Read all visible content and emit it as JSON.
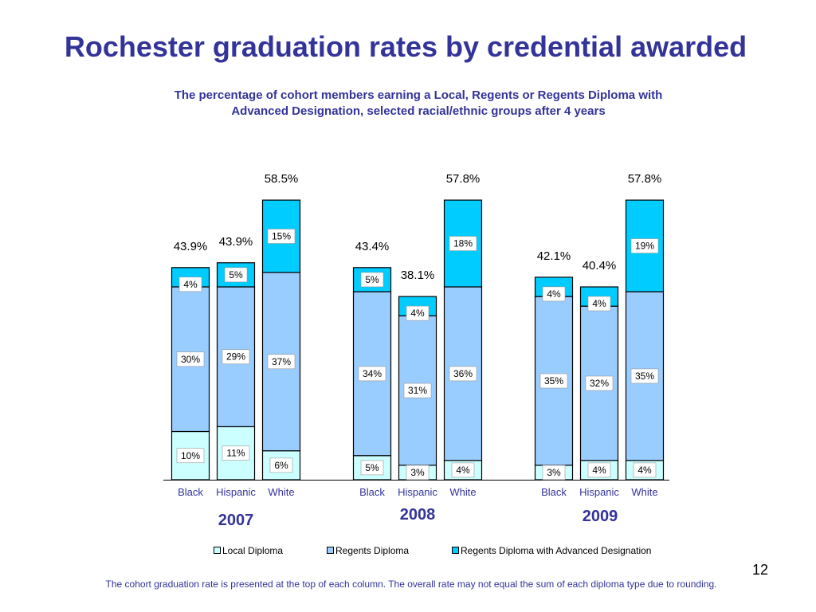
{
  "slide": {
    "title": "Rochester graduation rates by credential awarded",
    "subtitle_line1": "The percentage of cohort members earning a Local, Regents or Regents Diploma with",
    "subtitle_line2": "Advanced Designation, selected racial/ethnic groups after 4 years",
    "footnote": "The cohort graduation rate is presented at the top of each column. The overall rate may not equal the sum of each diploma type due to rounding.",
    "page_number": "12"
  },
  "colors": {
    "title": "#333399",
    "local": "#ccffff",
    "regents": "#99ccff",
    "advanced": "#00ccff",
    "group_label": "#333399"
  },
  "chart_data": {
    "type": "bar",
    "stacked": true,
    "groups": [
      "2007",
      "2008",
      "2009"
    ],
    "categories": [
      "Black",
      "Hispanic",
      "White"
    ],
    "series": [
      {
        "name": "Local Diploma",
        "values": [
          [
            10,
            11,
            6
          ],
          [
            5,
            3,
            4
          ],
          [
            3,
            4,
            4
          ]
        ]
      },
      {
        "name": "Regents Diploma",
        "values": [
          [
            30,
            29,
            37
          ],
          [
            34,
            31,
            36
          ],
          [
            35,
            32,
            35
          ]
        ]
      },
      {
        "name": "Regents Diploma with Advanced Designation",
        "values": [
          [
            4,
            5,
            15
          ],
          [
            5,
            4,
            18
          ],
          [
            4,
            4,
            19
          ]
        ]
      }
    ],
    "segment_labels": [
      [
        [
          "10%",
          "30%",
          "4%"
        ],
        [
          "11%",
          "29%",
          "5%"
        ],
        [
          "6%",
          "37%",
          "15%"
        ]
      ],
      [
        [
          "5%",
          "34%",
          "5%"
        ],
        [
          "3%",
          "31%",
          "4%"
        ],
        [
          "4%",
          "36%",
          "18%"
        ]
      ],
      [
        [
          "3%",
          "35%",
          "4%"
        ],
        [
          "4%",
          "32%",
          "4%"
        ],
        [
          "4%",
          "35%",
          "19%"
        ]
      ]
    ],
    "totals": [
      [
        "43.9%",
        "43.9%",
        "58.5%"
      ],
      [
        "43.4%",
        "38.1%",
        "57.8%"
      ],
      [
        "42.1%",
        "40.4%",
        "57.8%"
      ]
    ],
    "ylim": [
      0,
      65
    ],
    "grid": false,
    "legend_position": "bottom"
  }
}
